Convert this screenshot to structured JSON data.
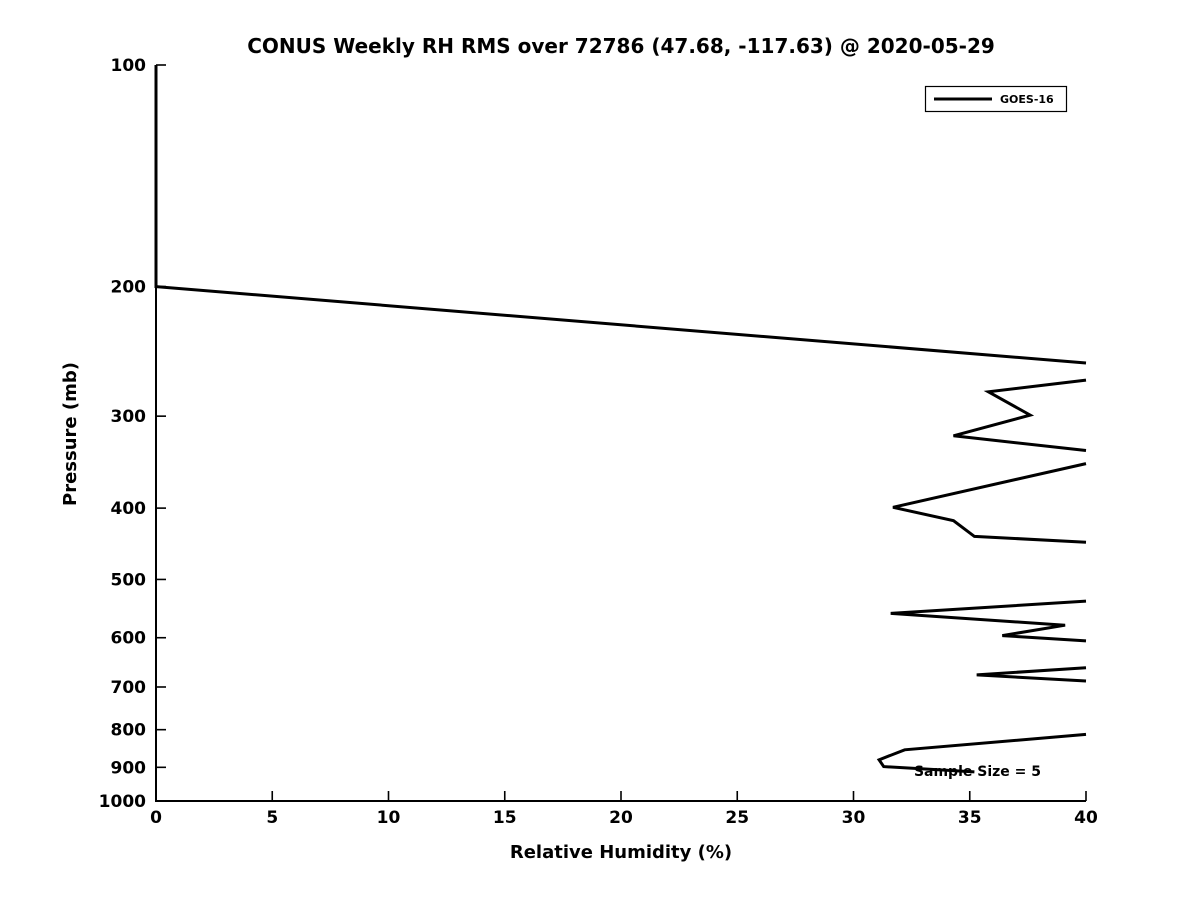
{
  "figure": {
    "background": "#ffffff",
    "foreground": "#000000"
  },
  "chart_data": {
    "type": "line",
    "title": "CONUS Weekly RH RMS over 72786 (47.68, -117.63) @ 2020-05-29",
    "xlabel": "Relative Humidity (%)",
    "ylabel": "Pressure (mb)",
    "xlim": [
      0,
      40
    ],
    "ylim": [
      100,
      1000
    ],
    "xticks": [
      0,
      5,
      10,
      15,
      20,
      25,
      30,
      35,
      40
    ],
    "yticks": [
      100,
      200,
      300,
      400,
      500,
      600,
      700,
      800,
      900,
      1000
    ],
    "yscale": "log",
    "y_inverted": true,
    "grid": false,
    "line_color": "#000000",
    "line_width": 3,
    "legend": {
      "position": "upper right",
      "entries": [
        {
          "label": "GOES-16",
          "color": "#000000"
        }
      ]
    },
    "annotation": {
      "text": "Sample Size = 5",
      "x": 32.6,
      "pressure": 913
    },
    "series": [
      {
        "name": "GOES-16",
        "color": "#000000",
        "note": "segments are polylines of [relative_humidity_pct, pressure_mb]; breaks occur where RMS exceeds the 40% axis limit (clipped at x=40)",
        "segments": [
          [
            [
              0,
              100
            ],
            [
              0,
              200
            ],
            [
              40,
              254
            ]
          ],
          [
            [
              40,
              268
            ],
            [
              35.8,
              278
            ],
            [
              37.6,
              299
            ],
            [
              34.3,
              319
            ],
            [
              40,
              334
            ]
          ],
          [
            [
              40,
              348
            ],
            [
              31.7,
              399
            ],
            [
              34.3,
              416
            ],
            [
              35.2,
              437
            ],
            [
              40,
              445
            ]
          ],
          [
            [
              40,
              535
            ],
            [
              31.6,
              556
            ],
            [
              39.1,
              577
            ],
            [
              36.4,
              596
            ],
            [
              40,
              606
            ]
          ],
          [
            [
              40,
              659
            ],
            [
              35.3,
              674
            ],
            [
              40,
              687
            ]
          ],
          [
            [
              40,
              812
            ],
            [
              32.2,
              852
            ],
            [
              31.1,
              879
            ],
            [
              31.3,
              898
            ],
            [
              35.2,
              913
            ]
          ]
        ]
      }
    ]
  }
}
